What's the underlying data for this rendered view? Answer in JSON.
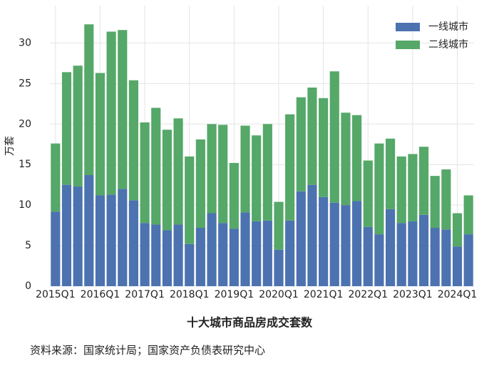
{
  "chart_data": {
    "type": "bar",
    "stacked": true,
    "title": "十大城市商品房成交套数",
    "source": "资料来源：国家统计局；国家资产负债表研究中心",
    "y_label": "万套",
    "categories": [
      "2015Q1",
      null,
      null,
      null,
      "2016Q1",
      null,
      null,
      null,
      "2017Q1",
      null,
      null,
      null,
      "2018Q1",
      null,
      null,
      null,
      "2019Q1",
      null,
      null,
      null,
      "2020Q1",
      null,
      null,
      null,
      "2021Q1",
      null,
      null,
      null,
      "2022Q1",
      null,
      null,
      null,
      "2023Q1",
      null,
      null,
      null,
      "2024Q1",
      null
    ],
    "series": [
      {
        "name": "一线城市",
        "color": "#4c72b0",
        "values": [
          9.2,
          12.5,
          12.3,
          13.7,
          11.2,
          11.3,
          12.0,
          10.6,
          7.8,
          7.6,
          6.9,
          7.6,
          5.2,
          7.2,
          9.0,
          7.8,
          7.1,
          9.1,
          8.0,
          8.1,
          4.5,
          8.1,
          11.7,
          12.5,
          11.0,
          10.3,
          10.0,
          10.5,
          7.3,
          6.4,
          9.5,
          7.8,
          8.0,
          8.8,
          7.2,
          7.0,
          4.9,
          6.4
        ]
      },
      {
        "name": "二线城市",
        "color": "#55a868",
        "values": [
          8.4,
          13.9,
          14.9,
          18.6,
          15.1,
          20.1,
          19.6,
          14.8,
          12.4,
          14.4,
          12.4,
          13.1,
          10.8,
          10.9,
          11.0,
          12.1,
          8.1,
          10.7,
          10.6,
          11.9,
          5.9,
          13.1,
          11.6,
          12.0,
          12.2,
          16.2,
          11.4,
          10.6,
          8.2,
          11.2,
          8.7,
          8.2,
          8.3,
          8.4,
          6.4,
          7.4,
          4.1,
          4.8
        ]
      }
    ],
    "ylim": [
      0,
      34.6
    ],
    "yticks": [
      0,
      5,
      10,
      15,
      20,
      25,
      30
    ],
    "grid": true,
    "legend": "upper right"
  }
}
